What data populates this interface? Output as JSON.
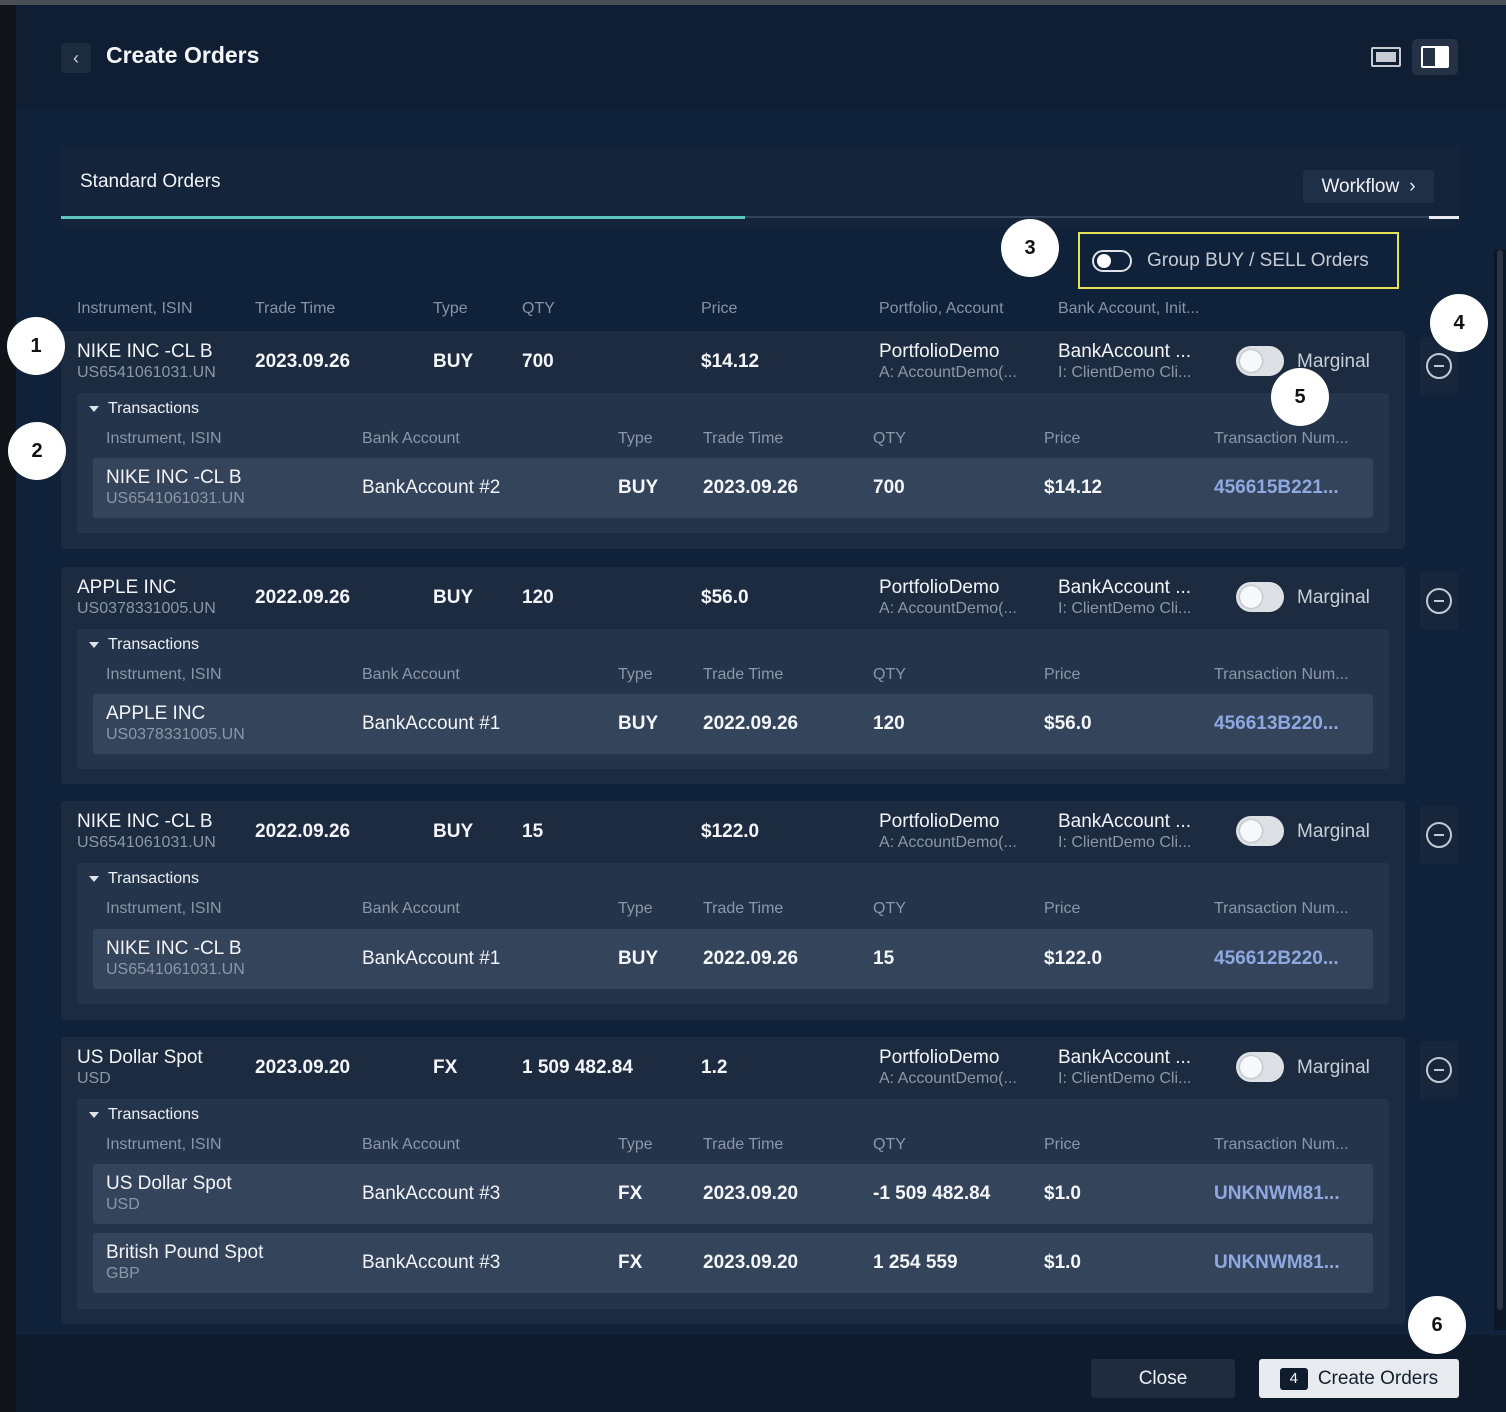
{
  "header": {
    "back_icon": "chevron-left-icon",
    "title": "Create Orders",
    "view_icons": [
      "monitor-view-icon",
      "split-view-icon"
    ]
  },
  "tabs": {
    "active": "Standard Orders",
    "workflow_label": "Workflow",
    "workflow_icon": "chevron-right-icon"
  },
  "group_toggle": {
    "label": "Group BUY / SELL Orders",
    "on": false
  },
  "columns": [
    "Instrument, ISIN",
    "Trade Time",
    "Type",
    "QTY",
    "Price",
    "Portfolio, Account",
    "Bank Account, Init..."
  ],
  "tx_columns": [
    "Instrument, ISIN",
    "Bank Account",
    "Type",
    "Trade Time",
    "QTY",
    "Price",
    "Transaction Num..."
  ],
  "transactions_label": "Transactions",
  "marginal_label": "Marginal",
  "orders": [
    {
      "name": "NIKE INC -CL B",
      "isin": "US6541061031.UN",
      "trade_time": "2023.09.26",
      "type": "BUY",
      "qty": "700",
      "price": "$14.12",
      "portfolio": "PortfolioDemo",
      "account": "A: AccountDemo(...",
      "bank": "BankAccount ...",
      "init": "I: ClientDemo Cli...",
      "transactions": [
        {
          "name": "NIKE INC -CL B",
          "isin": "US6541061031.UN",
          "bank": "BankAccount #2",
          "type": "BUY",
          "time": "2023.09.26",
          "qty": "700",
          "price": "$14.12",
          "num": "456615B221..."
        }
      ]
    },
    {
      "name": "APPLE INC",
      "isin": "US0378331005.UN",
      "trade_time": "2022.09.26",
      "type": "BUY",
      "qty": "120",
      "price": "$56.0",
      "portfolio": "PortfolioDemo",
      "account": "A: AccountDemo(...",
      "bank": "BankAccount ...",
      "init": "I: ClientDemo Cli...",
      "transactions": [
        {
          "name": "APPLE INC",
          "isin": "US0378331005.UN",
          "bank": "BankAccount #1",
          "type": "BUY",
          "time": "2022.09.26",
          "qty": "120",
          "price": "$56.0",
          "num": "456613B220..."
        }
      ]
    },
    {
      "name": "NIKE INC -CL B",
      "isin": "US6541061031.UN",
      "trade_time": "2022.09.26",
      "type": "BUY",
      "qty": "15",
      "price": "$122.0",
      "portfolio": "PortfolioDemo",
      "account": "A: AccountDemo(...",
      "bank": "BankAccount ...",
      "init": "I: ClientDemo Cli...",
      "transactions": [
        {
          "name": "NIKE INC -CL B",
          "isin": "US6541061031.UN",
          "bank": "BankAccount #1",
          "type": "BUY",
          "time": "2022.09.26",
          "qty": "15",
          "price": "$122.0",
          "num": "456612B220..."
        }
      ]
    },
    {
      "name": "US Dollar Spot",
      "isin": "USD",
      "trade_time": "2023.09.20",
      "type": "FX",
      "qty": "1 509 482.84",
      "price": "1.2",
      "portfolio": "PortfolioDemo",
      "account": "A: AccountDemo(...",
      "bank": "BankAccount ...",
      "init": "I: ClientDemo Cli...",
      "transactions": [
        {
          "name": "US Dollar Spot",
          "isin": "USD",
          "bank": "BankAccount #3",
          "type": "FX",
          "time": "2023.09.20",
          "qty": "-1 509 482.84",
          "price": "$1.0",
          "num": "UNKNWM81..."
        },
        {
          "name": "British Pound Spot",
          "isin": "GBP",
          "bank": "BankAccount #3",
          "type": "FX",
          "time": "2023.09.20",
          "qty": "1 254 559",
          "price": "$1.0",
          "num": "UNKNWM81..."
        }
      ]
    }
  ],
  "footer": {
    "close_label": "Close",
    "create_count": "4",
    "create_label": "Create Orders"
  },
  "callouts": [
    "1",
    "2",
    "3",
    "4",
    "5",
    "6"
  ]
}
